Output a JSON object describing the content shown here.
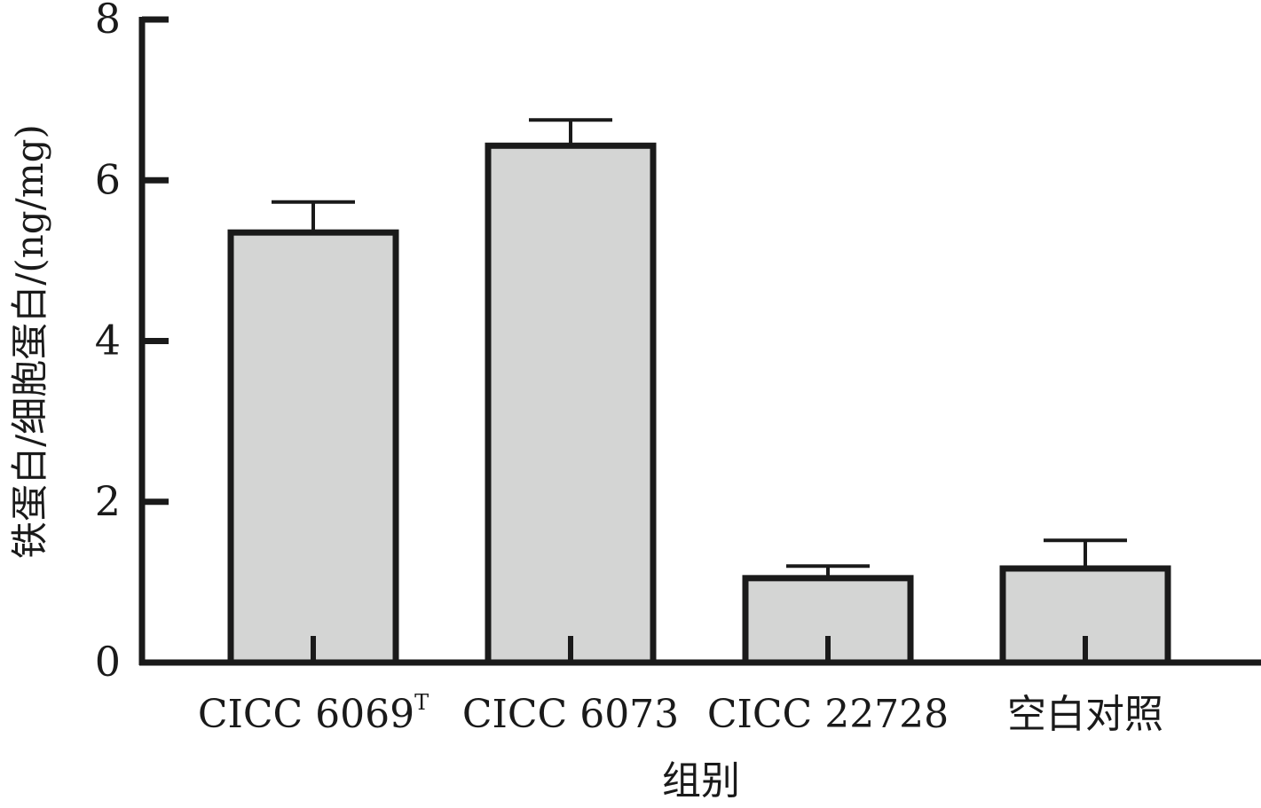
{
  "chart_data": {
    "type": "bar",
    "categories": [
      "CICC 6069",
      "CICC 6073",
      "CICC 22728",
      "空白对照"
    ],
    "category_superscripts": [
      "T",
      "",
      "",
      ""
    ],
    "values": [
      5.35,
      6.43,
      1.05,
      1.17
    ],
    "errors": [
      0.38,
      0.32,
      0.15,
      0.35
    ],
    "title": "",
    "xlabel": "组别",
    "ylabel": "铁蛋白/细胞蛋白/(ng/mg)",
    "ylim": [
      0,
      8
    ],
    "yticks": [
      "0",
      "2",
      "4",
      "6",
      "8"
    ],
    "grid": false,
    "legend": "none",
    "colors": {
      "bar_fill": "#d4d5d4",
      "bar_stroke": "#1a1a1a",
      "axis": "#1a1a1a"
    }
  }
}
